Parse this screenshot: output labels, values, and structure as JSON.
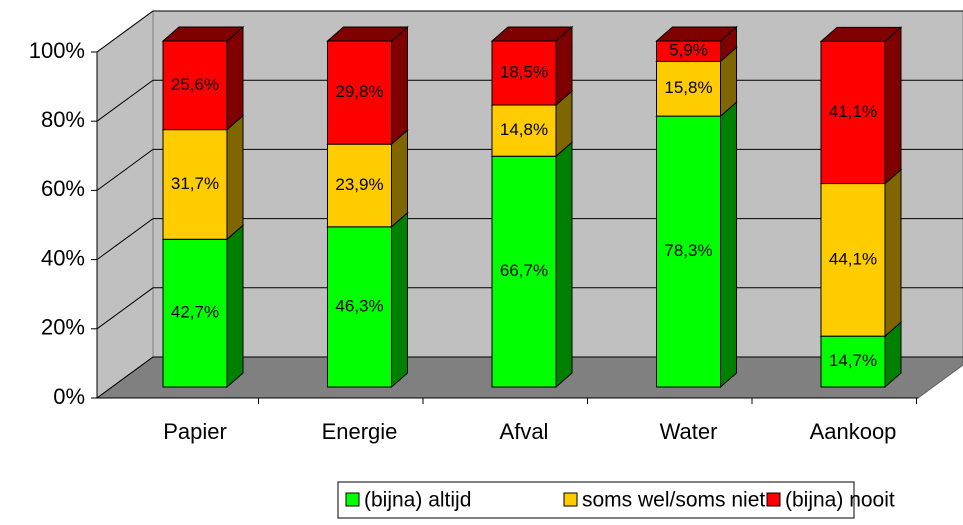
{
  "chart_data": {
    "type": "bar3d_stacked",
    "categories": [
      "Papier",
      "Energie",
      "Afval",
      "Water",
      "Aankoop"
    ],
    "series": [
      {
        "name": "(bijna) altijd",
        "color": "#00ff00",
        "side_color": "#008000",
        "values": [
          42.7,
          46.3,
          66.7,
          78.3,
          14.7
        ],
        "value_labels": [
          "42,7%",
          "46,3%",
          "66,7%",
          "78,3%",
          "14,7%"
        ]
      },
      {
        "name": "soms wel/soms niet",
        "color": "#ffcc00",
        "side_color": "#806600",
        "values": [
          31.7,
          23.9,
          14.8,
          15.8,
          44.1
        ],
        "value_labels": [
          "31,7%",
          "23,9%",
          "14,8%",
          "15,8%",
          "44,1%"
        ]
      },
      {
        "name": "(bijna) nooit",
        "color": "#ff0000",
        "side_color": "#800000",
        "values": [
          25.6,
          29.8,
          18.5,
          5.9,
          41.1
        ],
        "value_labels": [
          "25,6%",
          "29,8%",
          "18,5%",
          "5,9%",
          "41,1%"
        ]
      }
    ],
    "ylim": [
      0,
      100
    ],
    "yticks": [
      {
        "value": 0,
        "label": "0%"
      },
      {
        "value": 20,
        "label": "20%"
      },
      {
        "value": 40,
        "label": "40%"
      },
      {
        "value": 60,
        "label": "60%"
      },
      {
        "value": 80,
        "label": "80%"
      },
      {
        "value": 100,
        "label": "100%"
      }
    ],
    "grid": true,
    "legend": "bottom"
  }
}
